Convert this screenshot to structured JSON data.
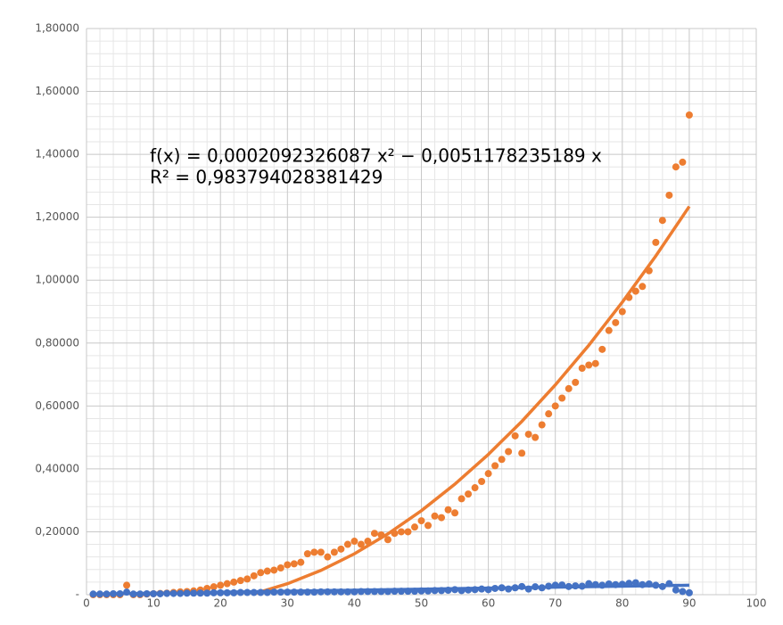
{
  "chart_data": {
    "type": "scatter",
    "x": [
      1,
      2,
      3,
      4,
      5,
      6,
      7,
      8,
      9,
      10,
      11,
      12,
      13,
      14,
      15,
      16,
      17,
      18,
      19,
      20,
      21,
      22,
      23,
      24,
      25,
      26,
      27,
      28,
      29,
      30,
      31,
      32,
      33,
      34,
      35,
      36,
      37,
      38,
      39,
      40,
      41,
      42,
      43,
      44,
      45,
      46,
      47,
      48,
      49,
      50,
      51,
      52,
      53,
      54,
      55,
      56,
      57,
      58,
      59,
      60,
      61,
      62,
      63,
      64,
      65,
      66,
      67,
      68,
      69,
      70,
      71,
      72,
      73,
      74,
      75,
      76,
      77,
      78,
      79,
      80,
      81,
      82,
      83,
      84,
      85,
      86,
      87,
      88,
      89,
      90
    ],
    "series": [
      {
        "color": "#ed7d31",
        "values": [
          0,
          0,
          0,
          0,
          0,
          0.03,
          0,
          0,
          0.002,
          0.003,
          0.004,
          0.005,
          0.007,
          0.009,
          0.01,
          0.012,
          0.015,
          0.02,
          0.025,
          0.03,
          0.035,
          0.04,
          0.045,
          0.05,
          0.06,
          0.07,
          0.075,
          0.078,
          0.085,
          0.095,
          0.098,
          0.103,
          0.13,
          0.135,
          0.135,
          0.12,
          0.135,
          0.145,
          0.16,
          0.17,
          0.16,
          0.17,
          0.195,
          0.19,
          0.175,
          0.195,
          0.2,
          0.2,
          0.215,
          0.235,
          0.22,
          0.25,
          0.245,
          0.27,
          0.26,
          0.305,
          0.32,
          0.34,
          0.36,
          0.385,
          0.41,
          0.43,
          0.455,
          0.505,
          0.45,
          0.51,
          0.5,
          0.54,
          0.575,
          0.6,
          0.625,
          0.655,
          0.675,
          0.72,
          0.73,
          0.735,
          0.78,
          0.84,
          0.865,
          0.9,
          0.945,
          0.965,
          0.98,
          1.03,
          1.12,
          1.19,
          1.27,
          1.36,
          1.375,
          1.525
        ]
      },
      {
        "color": "#4472c4",
        "values": [
          0.002,
          0.002,
          0.002,
          0.003,
          0.003,
          0.008,
          0.002,
          0.002,
          0.003,
          0.003,
          0.003,
          0.004,
          0.004,
          0.004,
          0.005,
          0.005,
          0.005,
          0.005,
          0.006,
          0.006,
          0.006,
          0.006,
          0.007,
          0.007,
          0.007,
          0.007,
          0.007,
          0.008,
          0.008,
          0.008,
          0.008,
          0.008,
          0.008,
          0.008,
          0.009,
          0.009,
          0.009,
          0.009,
          0.009,
          0.009,
          0.01,
          0.01,
          0.01,
          0.01,
          0.01,
          0.011,
          0.011,
          0.011,
          0.011,
          0.012,
          0.012,
          0.013,
          0.013,
          0.014,
          0.016,
          0.013,
          0.015,
          0.016,
          0.018,
          0.016,
          0.02,
          0.022,
          0.018,
          0.022,
          0.026,
          0.018,
          0.025,
          0.022,
          0.027,
          0.03,
          0.031,
          0.026,
          0.028,
          0.027,
          0.035,
          0.032,
          0.03,
          0.034,
          0.032,
          0.033,
          0.036,
          0.038,
          0.032,
          0.034,
          0.03,
          0.026,
          0.035,
          0.015,
          0.01,
          0.006
        ]
      }
    ],
    "trendlines": [
      {
        "color": "#ed7d31",
        "x": [
          25,
          30,
          35,
          40,
          45,
          50,
          55,
          60,
          65,
          70,
          75,
          80,
          85,
          90
        ],
        "values": [
          0.0028,
          0.0348,
          0.0772,
          0.13,
          0.1934,
          0.267,
          0.3514,
          0.446,
          0.551,
          0.667,
          0.793,
          0.93,
          1.0767,
          1.2343
        ]
      },
      {
        "color": "#4472c4",
        "x": [
          1,
          30,
          60,
          90
        ],
        "values": [
          0.002,
          0.011,
          0.021,
          0.03
        ]
      }
    ],
    "annotations": [
      "f(x) = 0,0002092326087 x² − 0,0051178235189 x",
      "R² = 0,983794028381429"
    ],
    "xlim": [
      0,
      100
    ],
    "xticks": [
      0,
      10,
      20,
      30,
      40,
      50,
      60,
      70,
      80,
      90,
      100
    ],
    "ylim": [
      0,
      1.8
    ],
    "yticks": [
      {
        "value": 0,
        "label": "-"
      },
      {
        "value": 0.2,
        "label": "0,20000"
      },
      {
        "value": 0.4,
        "label": "0,40000"
      },
      {
        "value": 0.6,
        "label": "0,60000"
      },
      {
        "value": 0.8,
        "label": "0,80000"
      },
      {
        "value": 1.0,
        "label": "1,00000"
      },
      {
        "value": 1.2,
        "label": "1,20000"
      },
      {
        "value": 1.4,
        "label": "1,40000"
      },
      {
        "value": 1.6,
        "label": "1,60000"
      },
      {
        "value": 1.8,
        "label": "1,80000"
      }
    ],
    "grid": true
  }
}
